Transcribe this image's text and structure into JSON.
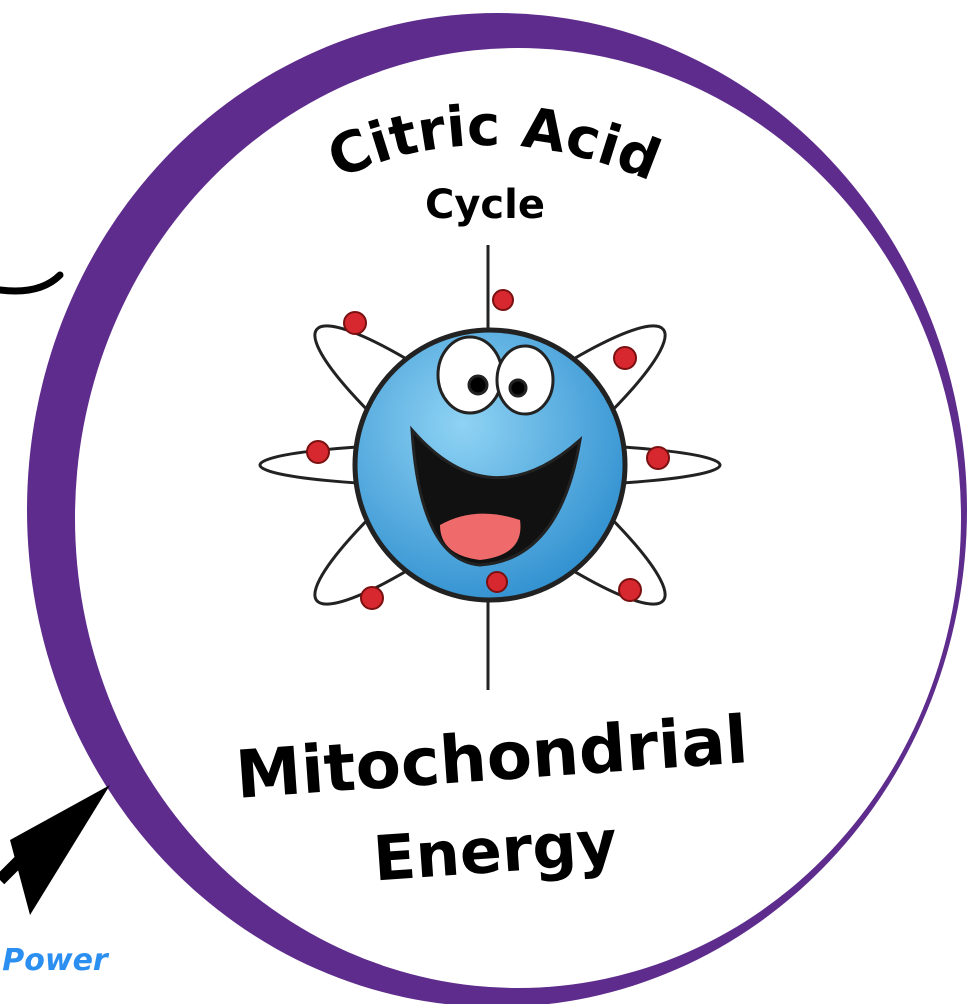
{
  "header": {
    "arc_title": "Citric Acid",
    "subtitle": "Cycle"
  },
  "footer": {
    "line1": "Mitochondrial",
    "line2": "Energy"
  },
  "side_label": "Power"
}
